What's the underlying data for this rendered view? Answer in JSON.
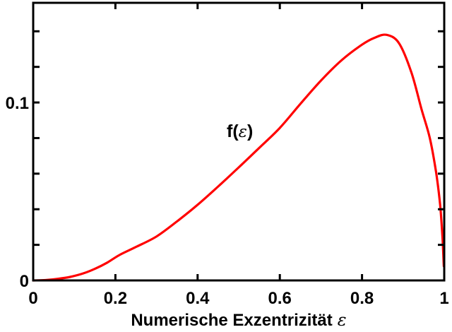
{
  "figure": {
    "background": "#ffffff",
    "axis_color": "#000000",
    "curve_color": "#ff0000"
  },
  "chart_data": {
    "type": "line",
    "title": "",
    "xlabel_text": "Numerische Exzentrizität",
    "xlabel_symbol": "ε",
    "ylabel": "",
    "curve_label": {
      "prefix": "f(",
      "symbol": "ε",
      "suffix": ")"
    },
    "xlim": [
      0,
      1
    ],
    "ylim": [
      0,
      0.156
    ],
    "grid": false,
    "legend_position": "none",
    "x_ticks": [
      0,
      0.2,
      0.4,
      0.6,
      0.8,
      1
    ],
    "x_tick_labels": [
      "0",
      "0.2",
      "0.4",
      "0.6",
      "0.8",
      "1"
    ],
    "y_ticks": [
      0,
      0.02,
      0.04,
      0.06,
      0.08,
      0.1,
      0.12,
      0.14
    ],
    "y_tick_labels": [
      "0",
      "",
      "",
      "",
      "",
      "0.1",
      "",
      ""
    ],
    "series": [
      {
        "name": "f(ε)",
        "color": "#ff0000",
        "x": [
          0,
          0.03,
          0.06,
          0.09,
          0.12,
          0.15,
          0.18,
          0.21,
          0.25,
          0.3,
          0.35,
          0.4,
          0.45,
          0.5,
          0.55,
          0.6,
          0.65,
          0.7,
          0.75,
          0.8,
          0.83,
          0.86,
          0.89,
          0.92,
          0.945,
          0.965,
          0.98,
          0.99,
          0.996,
          0.999
        ],
        "y": [
          0,
          0.0002,
          0.0009,
          0.002,
          0.0038,
          0.0065,
          0.01,
          0.0143,
          0.0188,
          0.0247,
          0.0332,
          0.0425,
          0.0528,
          0.0635,
          0.0745,
          0.0857,
          0.0992,
          0.1123,
          0.1237,
          0.1325,
          0.1363,
          0.138,
          0.1333,
          0.117,
          0.096,
          0.08,
          0.061,
          0.0425,
          0.023,
          0.008
        ]
      }
    ]
  }
}
